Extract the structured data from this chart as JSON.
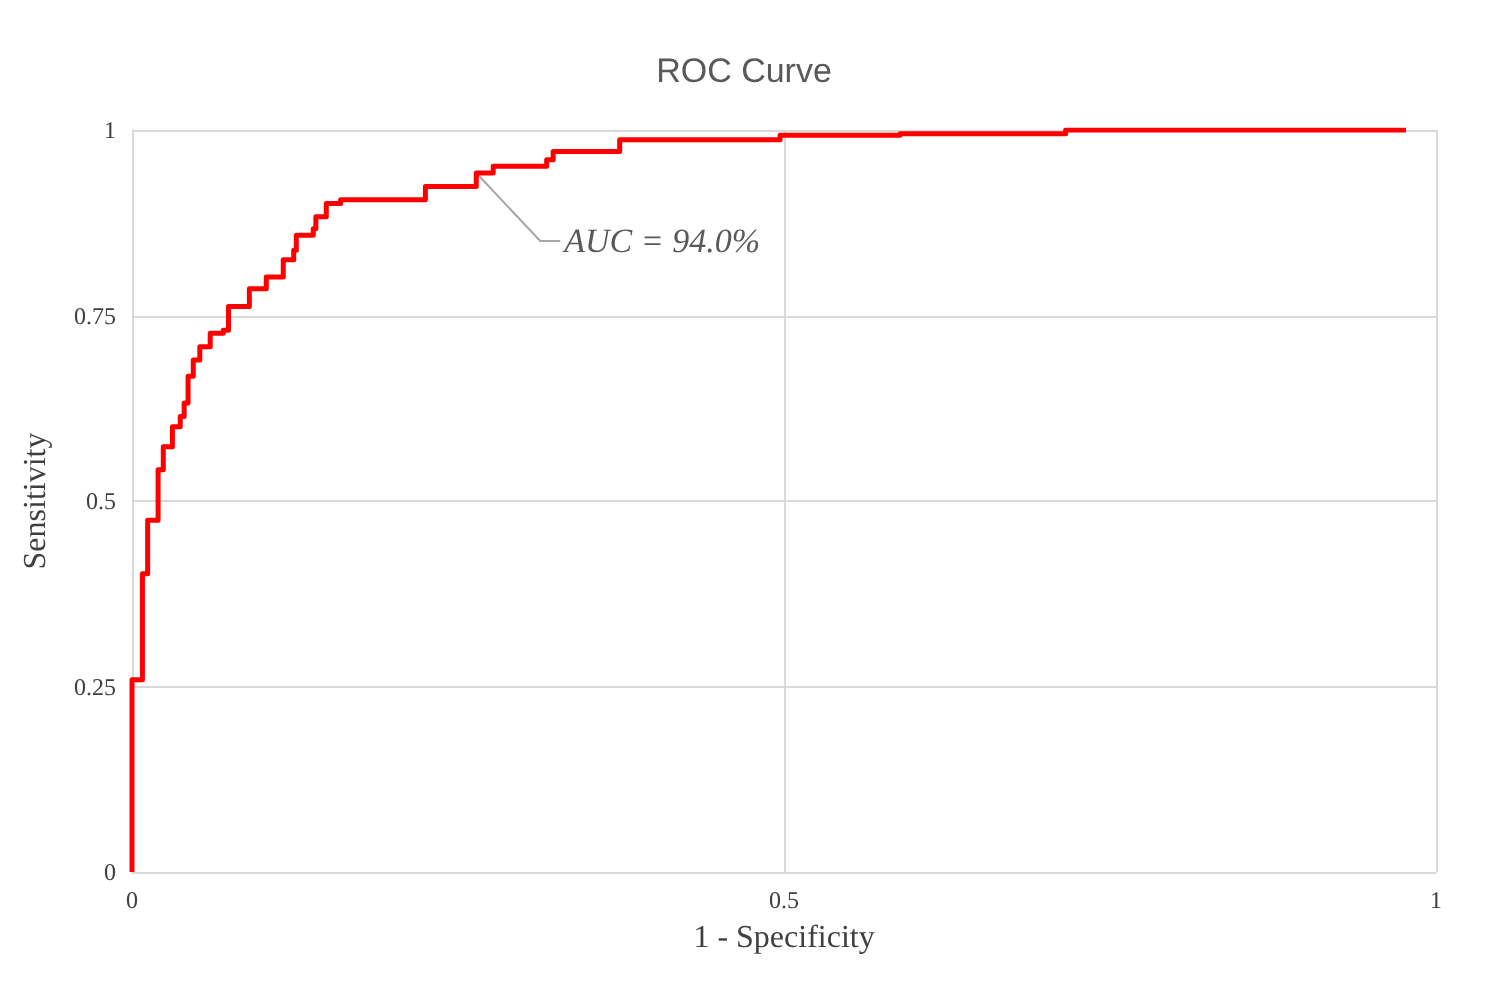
{
  "chart_data": {
    "type": "step",
    "title": "ROC Curve",
    "xlabel": "1 - Specificity",
    "ylabel": "Sensitivity",
    "xlim": [
      0,
      1
    ],
    "xticks": [
      0,
      0.5,
      1
    ],
    "ylim": [
      0,
      1
    ],
    "yticks": [
      0,
      0.25,
      0.5,
      0.75,
      1
    ],
    "grid": true,
    "x": [
      0,
      0,
      0.008,
      0.008,
      0.012,
      0.02,
      0.02,
      0.024,
      0.031,
      0.037,
      0.04,
      0.043,
      0.047,
      0.052,
      0.06,
      0.07,
      0.074,
      0.09,
      0.103,
      0.116,
      0.124,
      0.126,
      0.139,
      0.141,
      0.149,
      0.16,
      0.225,
      0.264,
      0.277,
      0.318,
      0.323,
      0.374,
      0.497,
      0.589,
      0.716,
      0.977
    ],
    "series": [
      {
        "color": "#ff0000",
        "values": [
          0,
          0.259,
          0.268,
          0.402,
          0.474,
          0.483,
          0.542,
          0.573,
          0.6,
          0.614,
          0.632,
          0.668,
          0.69,
          0.708,
          0.726,
          0.73,
          0.762,
          0.786,
          0.802,
          0.825,
          0.838,
          0.858,
          0.867,
          0.883,
          0.901,
          0.906,
          0.924,
          0.942,
          0.951,
          0.96,
          0.971,
          0.987,
          0.993,
          0.995,
          1,
          1
        ]
      }
    ],
    "annotations": [
      {
        "text": "AUC = 94.0%",
        "x": 0.264,
        "y": 0.942
      }
    ]
  }
}
